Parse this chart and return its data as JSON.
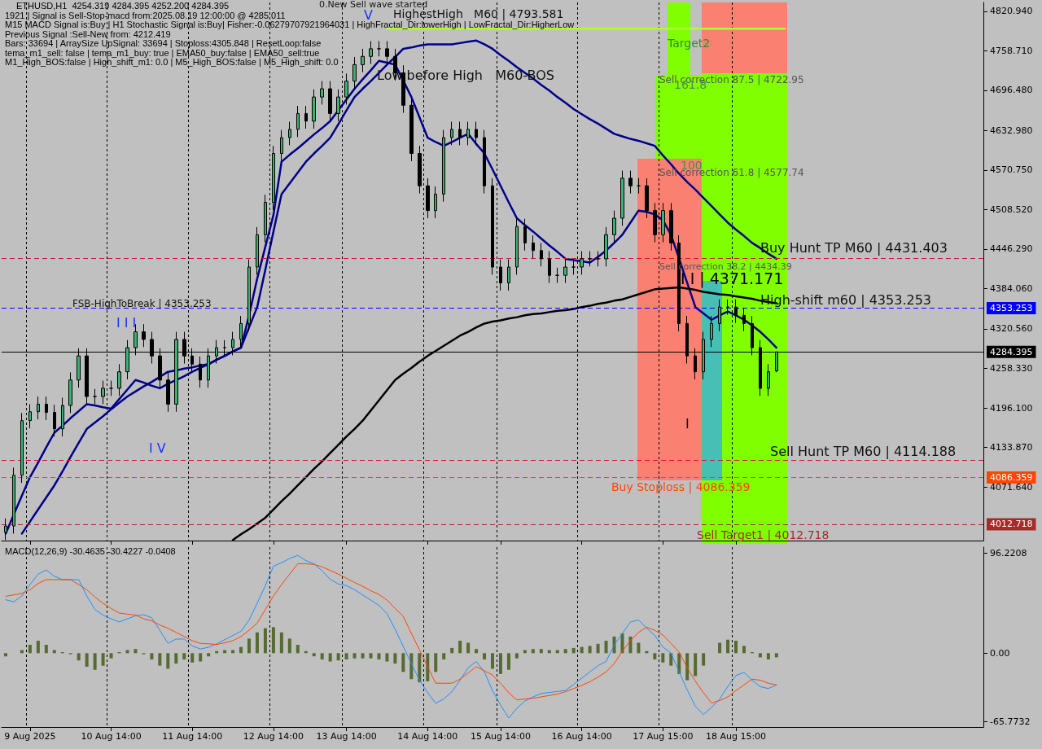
{
  "chart_data": [
    {
      "type": "candlestick",
      "title": "ETHUSD,H1  4254.319 4284.395 4252.200 4284.395",
      "color": "#000000",
      "annotations": [
        "1921 | Signal is Sell-Stop-macd from:2025.08.19 12:00:00 @ 4285.011",
        "M15 MACD Signal is:Buy | H1 Stochastic Signal is:Buy| Fisher:-0.06279707921964031 | HighFractal_Dir:lowerHigh | LowFractal_Dir:HigherLow",
        "Previous Signal :Sell-New from: 4212.419",
        "Bars: 33694 | ArraySize UpSignal: 33694 | Stoploss:4305.848 | ResetLoop:false",
        "tema_m1_sell: false | tema_m1_buy: true | EMA50_buy:false | EMA50_sell:true",
        "M1_High_BOS:false | High_shift_m1: 0.0 | M5_High_BOS:false | M5_High_shift: 0.0",
        "0.New Sell wave started",
        "V",
        "HighestHigh   M60 | 4793.581",
        "Low before High   M60-BOS",
        "Target2",
        "Sell correction 87.5 | 4722.95",
        "161.8",
        "100",
        "Sell correction 61.8 | 4577.74",
        "Buy Hunt TP M60 | 4431.403",
        "Sell correction 38.2 | 4434.39",
        "I I | 4371.171",
        "High-shift m60 | 4353.253",
        "FSB-HighToBreak | 4353.253",
        "I I I",
        "I V",
        "I",
        "Sell Hunt TP M60 | 4114.188",
        "Buy Stoploss | 4086.359",
        "Sell Target1 | 4012.718"
      ],
      "categories": [
        null,
        null,
        null,
        null,
        null,
        null,
        null,
        null,
        null,
        null,
        null,
        null,
        null,
        null,
        null,
        null,
        null,
        null,
        null,
        null,
        null,
        null,
        null,
        null,
        null,
        null,
        null,
        null,
        null,
        null,
        null,
        null,
        null,
        null,
        null,
        null,
        null,
        null,
        null,
        null,
        null,
        null,
        null,
        null,
        null,
        null,
        null,
        null,
        null,
        null,
        null,
        null,
        null,
        null,
        null,
        null,
        null,
        null,
        null,
        null,
        null,
        null,
        null,
        null,
        null,
        null,
        null,
        null,
        null,
        null,
        null,
        null,
        null,
        null,
        null,
        null,
        null,
        null,
        null,
        null,
        null,
        null,
        null,
        null,
        null,
        null,
        null,
        null,
        null,
        null,
        null,
        null,
        null,
        null,
        null,
        null,
        null,
        null,
        null,
        null,
        null,
        null,
        null,
        null,
        null,
        null,
        null,
        null,
        null,
        null,
        null,
        null,
        null,
        null,
        null,
        null,
        null,
        null,
        null,
        null,
        null
      ],
      "ohlc": [
        [
          4000,
          4022,
          3988,
          4010
        ],
        [
          4010,
          4102,
          3998,
          4090
        ],
        [
          4090,
          4188,
          4078,
          4176
        ],
        [
          4176,
          4202,
          4164,
          4190
        ],
        [
          4190,
          4214,
          4178,
          4202
        ],
        [
          4202,
          4214,
          4177,
          4189
        ],
        [
          4189,
          4201,
          4151,
          4163
        ],
        [
          4163,
          4212,
          4151,
          4200
        ],
        [
          4200,
          4252,
          4188,
          4240
        ],
        [
          4240,
          4290,
          4228,
          4278
        ],
        [
          4278,
          4290,
          4202,
          4214
        ],
        [
          4214,
          4226,
          4202,
          4214
        ],
        [
          4214,
          4239,
          4202,
          4227
        ],
        [
          4227,
          4239,
          4215,
          4227
        ],
        [
          4227,
          4265,
          4215,
          4253
        ],
        [
          4253,
          4303,
          4241,
          4291
        ],
        [
          4291,
          4328,
          4279,
          4316
        ],
        [
          4316,
          4328,
          4292,
          4304
        ],
        [
          4304,
          4316,
          4266,
          4278
        ],
        [
          4278,
          4290,
          4228,
          4240
        ],
        [
          4240,
          4252,
          4190,
          4202
        ],
        [
          4202,
          4316,
          4190,
          4304
        ],
        [
          4304,
          4316,
          4266,
          4278
        ],
        [
          4278,
          4290,
          4253,
          4265
        ],
        [
          4265,
          4277,
          4228,
          4240
        ],
        [
          4240,
          4290,
          4228,
          4278
        ],
        [
          4278,
          4303,
          4266,
          4291
        ],
        [
          4291,
          4303,
          4279,
          4291
        ],
        [
          4291,
          4316,
          4279,
          4304
        ],
        [
          4304,
          4341,
          4292,
          4329
        ],
        [
          4329,
          4430,
          4317,
          4418
        ],
        [
          4418,
          4481,
          4406,
          4469
        ],
        [
          4469,
          4532,
          4457,
          4520
        ],
        [
          4520,
          4609,
          4508,
          4597
        ],
        [
          4597,
          4634,
          4585,
          4622
        ],
        [
          4622,
          4647,
          4610,
          4635
        ],
        [
          4635,
          4672,
          4623,
          4660
        ],
        [
          4660,
          4672,
          4636,
          4648
        ],
        [
          4648,
          4698,
          4636,
          4686
        ],
        [
          4686,
          4711,
          4674,
          4699
        ],
        [
          4699,
          4711,
          4648,
          4660
        ],
        [
          4660,
          4698,
          4648,
          4686
        ],
        [
          4686,
          4723,
          4674,
          4711
        ],
        [
          4711,
          4749,
          4699,
          4737
        ],
        [
          4737,
          4762,
          4725,
          4750
        ],
        [
          4750,
          4774,
          4738,
          4762
        ],
        [
          4762,
          4774,
          4750,
          4762
        ],
        [
          4762,
          4774,
          4738,
          4750
        ],
        [
          4750,
          4762,
          4712,
          4724
        ],
        [
          4724,
          4736,
          4661,
          4673
        ],
        [
          4673,
          4685,
          4585,
          4597
        ],
        [
          4597,
          4609,
          4534,
          4546
        ],
        [
          4546,
          4558,
          4495,
          4507
        ],
        [
          4507,
          4545,
          4495,
          4533
        ],
        [
          4533,
          4634,
          4521,
          4622
        ],
        [
          4622,
          4647,
          4610,
          4635
        ],
        [
          4635,
          4647,
          4610,
          4622
        ],
        [
          4622,
          4647,
          4610,
          4635
        ],
        [
          4635,
          4647,
          4610,
          4622
        ],
        [
          4622,
          4634,
          4534,
          4546
        ],
        [
          4546,
          4558,
          4406,
          4418
        ],
        [
          4418,
          4430,
          4381,
          4393
        ],
        [
          4393,
          4430,
          4381,
          4418
        ],
        [
          4418,
          4494,
          4406,
          4482
        ],
        [
          4482,
          4494,
          4444,
          4456
        ],
        [
          4456,
          4468,
          4432,
          4444
        ],
        [
          4444,
          4456,
          4419,
          4431
        ],
        [
          4431,
          4443,
          4393,
          4405
        ],
        [
          4405,
          4417,
          4393,
          4405
        ],
        [
          4405,
          4430,
          4393,
          4418
        ],
        [
          4418,
          4430,
          4406,
          4418
        ],
        [
          4418,
          4443,
          4406,
          4431
        ],
        [
          4431,
          4443,
          4419,
          4431
        ],
        [
          4431,
          4443,
          4419,
          4431
        ],
        [
          4431,
          4481,
          4419,
          4469
        ],
        [
          4469,
          4507,
          4457,
          4495
        ],
        [
          4495,
          4570,
          4483,
          4558
        ],
        [
          4558,
          4570,
          4534,
          4546
        ],
        [
          4546,
          4558,
          4534,
          4546
        ],
        [
          4546,
          4558,
          4495,
          4507
        ],
        [
          4507,
          4519,
          4457,
          4469
        ],
        [
          4469,
          4519,
          4457,
          4507
        ],
        [
          4507,
          4519,
          4444,
          4456
        ],
        [
          4456,
          4468,
          4317,
          4329
        ],
        [
          4329,
          4341,
          4266,
          4278
        ],
        [
          4278,
          4290,
          4241,
          4253
        ],
        [
          4253,
          4316,
          4241,
          4304
        ],
        [
          4304,
          4341,
          4292,
          4329
        ],
        [
          4329,
          4367,
          4317,
          4355
        ],
        [
          4355,
          4367,
          4343,
          4355
        ],
        [
          4355,
          4367,
          4330,
          4342
        ],
        [
          4342,
          4354,
          4317,
          4329
        ],
        [
          4329,
          4341,
          4279,
          4291
        ],
        [
          4291,
          4303,
          4215,
          4227
        ],
        [
          4227,
          4265,
          4215,
          4253
        ],
        [
          4254.319,
          4284.395,
          4252.2,
          4284.395
        ],
        null,
        null,
        null,
        null,
        null,
        null,
        null,
        null,
        null,
        null,
        null,
        null,
        null,
        null,
        null,
        null,
        null,
        null,
        null,
        null,
        null,
        null,
        null,
        null,
        null
      ],
      "series": [
        {
          "type": "line",
          "color": "#00008b",
          "values": [
            3998,
            4028,
            4058,
            4087,
            4110,
            4134,
            4157,
            4168,
            4180,
            4191,
            4202,
            4200,
            4197,
            4195,
            4210,
            4225,
            4240,
            4236,
            4231,
            4227,
            4234,
            4240,
            4246,
            4253,
            4259,
            4265,
            4272,
            4278,
            4285,
            4291,
            4342,
            4400,
            4450,
            4500,
            4584,
            4595,
            4605,
            4616,
            4627,
            4637,
            4648,
            4665,
            4682,
            4699,
            4714,
            4728,
            4743,
            4740,
            4737,
            4712,
            4686,
            4654,
            4622,
            4615,
            4609,
            4615,
            4622,
            4628,
            4612,
            4597,
            4572,
            4546,
            4520,
            4495,
            4484,
            4474,
            4463,
            4452,
            4442,
            4431,
            4429,
            4427,
            4425,
            4434,
            4444,
            4456,
            4469,
            4488,
            4507,
            4505,
            4501,
            4492,
            4469,
            4431,
            4393,
            4355,
            4345,
            4335,
            4342,
            4348,
            4342,
            4335,
            4326,
            4316,
            4304,
            4291,
            null,
            null,
            null,
            null,
            null,
            null,
            null,
            null,
            null,
            null,
            null,
            null,
            null,
            null,
            null,
            null,
            null,
            null,
            null,
            null,
            null,
            null,
            null,
            null,
            null
          ]
        },
        {
          "type": "line",
          "color": "#00008b",
          "values": [
            null,
            null,
            3998,
            4017,
            4036,
            4055,
            4074,
            4096,
            4119,
            4141,
            4163,
            4173,
            4183,
            4194,
            4204,
            4214,
            4222,
            4230,
            4237,
            4245,
            4253,
            4255,
            4258,
            4260,
            4263,
            4265,
            4272,
            4278,
            4285,
            4291,
            4323,
            4355,
            4414,
            4474,
            4533,
            4550,
            4567,
            4584,
            4597,
            4609,
            4622,
            4643,
            4665,
            4686,
            4699,
            4711,
            4724,
            4737,
            4749,
            4762,
            4764,
            4767,
            4769,
            4769,
            4769,
            4769,
            4771,
            4773,
            4775,
            4769,
            4762,
            4752,
            4743,
            4733,
            4724,
            4715,
            4705,
            4696,
            4686,
            4677,
            4667,
            4659,
            4651,
            4644,
            4636,
            4628,
            4624,
            4620,
            4617,
            4613,
            4609,
            4594,
            4580,
            4565,
            4552,
            4540,
            4527,
            4514,
            4501,
            4488,
            4477,
            4467,
            4456,
            4448,
            4439,
            4431,
            null,
            null,
            null,
            null,
            null,
            null,
            null,
            null,
            null,
            null,
            null,
            null,
            null,
            null,
            null,
            null,
            null,
            null,
            null,
            null,
            null,
            null,
            null,
            null,
            null
          ]
        },
        {
          "type": "line",
          "color": "#000000",
          "values": [
            null,
            null,
            null,
            null,
            null,
            null,
            null,
            null,
            null,
            null,
            null,
            null,
            null,
            null,
            null,
            null,
            null,
            null,
            null,
            null,
            null,
            null,
            null,
            null,
            null,
            null,
            null,
            null,
            3988,
            3997,
            4005,
            4014,
            4023,
            4036,
            4049,
            4061,
            4074,
            4087,
            4100,
            4112,
            4125,
            4138,
            4151,
            4163,
            4176,
            4192,
            4208,
            4224,
            4240,
            4250,
            4259,
            4269,
            4278,
            4286,
            4294,
            4302,
            4310,
            4316,
            4323,
            4329,
            4332,
            4334,
            4337,
            4339,
            4342,
            4344,
            4345,
            4347,
            4349,
            4350,
            4352,
            4355,
            4357,
            4360,
            4362,
            4365,
            4367,
            4371,
            4375,
            4379,
            4383,
            4384,
            4385,
            4386,
            4384,
            4382,
            4379,
            4377,
            4375,
            4374,
            4372,
            4370,
            4368,
            4365,
            4363,
            4361,
            null,
            null,
            null,
            null,
            null,
            null,
            null,
            null,
            null,
            null,
            null,
            null,
            null,
            null,
            null,
            null,
            null,
            null,
            null,
            null,
            null,
            null,
            null,
            null,
            null
          ]
        },
        {
          "type": "line",
          "color": "#adff2f",
          "values": [
            null,
            null,
            null,
            null,
            null,
            null,
            null,
            null,
            null,
            null,
            null,
            null,
            null,
            null,
            null,
            null,
            null,
            null,
            null,
            null,
            null,
            null,
            null,
            null,
            null,
            null,
            null,
            null,
            null,
            null,
            null,
            null,
            null,
            null,
            null,
            null,
            null,
            null,
            null,
            null,
            null,
            null,
            null,
            null,
            null,
            null,
            null,
            4793.581,
            4793.581,
            4793.581,
            4793.581,
            4793.581,
            4793.581,
            4793.581,
            4793.581,
            4793.581,
            4793.581,
            4793.581,
            4793.581,
            4793.581,
            4793.581,
            4793.581,
            4793.581,
            4793.581,
            4793.581,
            4793.581,
            4793.581,
            4793.581,
            4793.581,
            4793.581,
            4793.581,
            4793.581,
            4793.581,
            4793.581,
            4793.581,
            4793.581,
            4793.581,
            4793.581,
            4793.581,
            4793.581,
            4793.581,
            4793.581,
            4793.581,
            4793.581,
            4793.581,
            4793.581,
            4793.581,
            4793.581,
            4793.581,
            4793.581,
            4793.581,
            4793.581,
            4793.581,
            4793.581,
            4793.581,
            4793.581,
            4793.581,
            null,
            null,
            null,
            null,
            null,
            null,
            null,
            null,
            null,
            null,
            null,
            null,
            null,
            null,
            null,
            null,
            null,
            null,
            null,
            null,
            null,
            null,
            null,
            null
          ]
        }
      ],
      "ref_lines": [
        {
          "axis": "y",
          "value": 4431.403,
          "color": "#dc143c",
          "line_style": "dashed"
        },
        {
          "axis": "y",
          "value": 4353.253,
          "label": "4353.253",
          "color": "#0000ff",
          "line_style": "dashed"
        },
        {
          "axis": "y",
          "value": 4284.395,
          "label": "4284.395",
          "color": "#000000",
          "line_style": "solid"
        },
        {
          "axis": "y",
          "value": 4114.188,
          "color": "#dc143c",
          "line_style": "dashed"
        },
        {
          "axis": "y",
          "value": 4086.359,
          "label": "4086.359",
          "color": "#ff4500",
          "line_style": "dashed"
        },
        {
          "axis": "y",
          "value": 4012.718,
          "label": "4012.718",
          "color": "#a52a2a",
          "line_style": "dashed"
        }
      ],
      "ylim": [
        3987,
        4835
      ],
      "yticks": [
        {
          "value": 4820.94,
          "label": "4820.940"
        },
        {
          "value": 4758.71,
          "label": "4758.710"
        },
        {
          "value": 4696.48,
          "label": "4696.480"
        },
        {
          "value": 4632.98,
          "label": "4632.980"
        },
        {
          "value": 4570.75,
          "label": "4570.750"
        },
        {
          "value": 4508.52,
          "label": "4508.520"
        },
        {
          "value": 4446.29,
          "label": "4446.290"
        },
        {
          "value": 4384.06,
          "label": "4384.060"
        },
        {
          "value": 4320.56,
          "label": "4320.560"
        },
        {
          "value": 4258.33,
          "label": "4258.330"
        },
        {
          "value": 4196.1,
          "label": "4196.100"
        },
        {
          "value": 4133.87,
          "label": "4133.870"
        },
        {
          "value": 4071.64,
          "label": "4071.640"
        }
      ],
      "grid": "x"
    },
    {
      "type": "bar",
      "title": "MACD(12,26,9) -30.4635 -30.4227 -0.0408",
      "categories": [
        null,
        null,
        null,
        "9 Aug 2025",
        null,
        null,
        null,
        null,
        null,
        null,
        null,
        null,
        null,
        "10 Aug 14:00",
        null,
        null,
        null,
        null,
        null,
        null,
        null,
        null,
        null,
        "11 Aug 14:00",
        null,
        null,
        null,
        null,
        null,
        null,
        null,
        null,
        null,
        "12 Aug 14:00",
        null,
        null,
        null,
        null,
        null,
        null,
        null,
        null,
        "13 Aug 14:00",
        null,
        null,
        null,
        null,
        null,
        null,
        null,
        null,
        null,
        "14 Aug 14:00",
        null,
        null,
        null,
        null,
        null,
        null,
        null,
        null,
        "15 Aug 14:00",
        null,
        null,
        null,
        null,
        null,
        null,
        null,
        null,
        null,
        "16 Aug 14:00",
        null,
        null,
        null,
        null,
        null,
        null,
        null,
        null,
        null,
        "17 Aug 15:00",
        null,
        null,
        null,
        null,
        null,
        null,
        null,
        null,
        "18 Aug 15:00",
        null,
        null,
        null,
        null,
        null,
        null,
        null,
        null,
        null,
        null,
        null,
        null,
        null,
        null,
        null,
        null,
        null,
        null,
        null,
        null,
        null,
        null,
        null,
        null,
        null,
        null,
        null,
        null,
        null,
        null
      ],
      "series": [
        {
          "type": "bar",
          "color": "#556b2f",
          "values": [
            -3,
            0,
            3,
            8,
            12,
            8,
            3,
            1,
            -1,
            -7,
            -13,
            -16,
            -12,
            -5,
            1,
            3,
            4,
            -1,
            -6,
            -12,
            -15,
            -10,
            -6,
            -9,
            -8,
            -3,
            2,
            3,
            3,
            6,
            14,
            20,
            24,
            25,
            20,
            14,
            8,
            2,
            -3,
            -6,
            -8,
            -7,
            -6,
            -5,
            -5,
            -5,
            -6,
            -8,
            -10,
            -18,
            -25,
            -28,
            -27,
            -18,
            -6,
            5,
            12,
            10,
            4,
            -6,
            -15,
            -20,
            -16,
            -5,
            3,
            4,
            4,
            3,
            3,
            4,
            5,
            6,
            7,
            9,
            12,
            16,
            19,
            16,
            10,
            2,
            -6,
            -9,
            -12,
            -20,
            -26,
            -22,
            -12,
            0,
            10,
            13,
            12,
            7,
            1,
            -4,
            -6,
            -4,
            null,
            null,
            null,
            null,
            null,
            null,
            null,
            null,
            null,
            null,
            null,
            null,
            null,
            null,
            null,
            null,
            null,
            null,
            null,
            null,
            null,
            null,
            null,
            null,
            null
          ]
        },
        {
          "type": "line",
          "color": "#1e90ff",
          "values": [
            51.4,
            49.4,
            55,
            66,
            76,
            80,
            74,
            70.7,
            70.7,
            70.7,
            55,
            42,
            36.5,
            33,
            30,
            33,
            36,
            37,
            34,
            22,
            9.6,
            13.5,
            13.7,
            7,
            4,
            5.7,
            9,
            13,
            17,
            21,
            32,
            48,
            65,
            83.6,
            87,
            91,
            94,
            89,
            86,
            79,
            71,
            66.5,
            65,
            61,
            56,
            51,
            46,
            38,
            23,
            6.4,
            -10,
            -26,
            -38,
            -48.2,
            -44,
            -37,
            -26,
            -14,
            -8,
            -18,
            -36,
            -50,
            -62.4,
            -53,
            -46,
            -42,
            -38.8,
            -37.8,
            -36.8,
            -35.8,
            -30,
            -24,
            -18,
            -12,
            -8,
            8,
            19,
            30,
            32,
            24,
            17,
            6,
            0,
            -18,
            -35.4,
            -51,
            -59,
            -52,
            -44,
            -32,
            -21.5,
            -18.5,
            -26,
            -32.2,
            -34,
            -30.5,
            null,
            null,
            null,
            null,
            null,
            null,
            null,
            null,
            null,
            null,
            null,
            null,
            null,
            null,
            null,
            null,
            null,
            null,
            null,
            null,
            null,
            null,
            null,
            null,
            null
          ]
        },
        {
          "type": "line",
          "color": "#ff4500",
          "values": [
            54.7,
            56,
            57.5,
            61,
            67,
            70.7,
            70.7,
            70.7,
            70.7,
            66,
            61,
            54,
            48,
            43,
            38.6,
            37.5,
            36.7,
            33,
            31,
            27,
            24,
            20,
            16,
            12,
            9.4,
            9,
            8.4,
            10,
            12,
            16,
            22,
            28.9,
            42,
            55,
            66,
            76,
            86,
            86,
            85.2,
            83,
            79.5,
            76,
            72,
            68,
            64.3,
            60,
            56.5,
            51,
            43,
            35.4,
            19,
            3.2,
            -13,
            -28.9,
            -28.9,
            -28.9,
            -25,
            -19,
            -13,
            -17,
            -21,
            -29,
            -38,
            -45,
            -44,
            -43.3,
            -42,
            -40.7,
            -39.3,
            -37,
            -34,
            -31,
            -27.5,
            -23,
            -18,
            -10,
            2,
            12,
            20,
            25,
            22,
            17.5,
            9.5,
            1,
            -14,
            -27,
            -38,
            -48,
            -45.5,
            -42,
            -36,
            -30.5,
            -25,
            -26,
            -29,
            -30.4,
            null,
            null,
            null,
            null,
            null,
            null,
            null,
            null,
            null,
            null,
            null,
            null,
            null,
            null,
            null,
            null,
            null,
            null,
            null,
            null,
            null,
            null,
            null,
            null,
            null
          ]
        }
      ],
      "ylim": [
        -71,
        102
      ],
      "yticks": [
        {
          "value": 96.2208,
          "label": "96.2208"
        },
        {
          "value": 0,
          "label": "0.00"
        },
        {
          "value": -65.7732,
          "label": "-65.7732"
        }
      ],
      "grid": "x"
    }
  ]
}
